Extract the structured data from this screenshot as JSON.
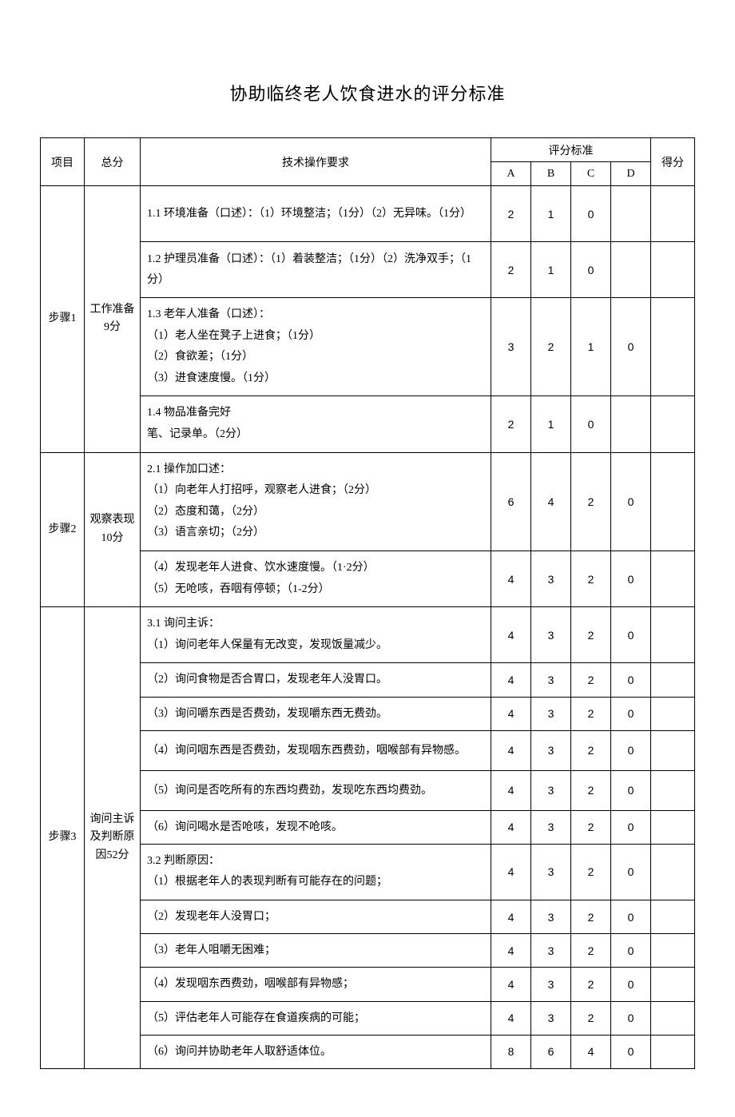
{
  "title": "协助临终老人饮食进水的评分标准",
  "headers": {
    "project": "项目",
    "total": "总分",
    "requirement": "技术操作要求",
    "standard": "评分标准",
    "A": "A",
    "B": "B",
    "C": "C",
    "D": "D",
    "score": "得分"
  },
  "sections": [
    {
      "proj": "步骤1",
      "total": "工作准备9分",
      "rows": [
        {
          "req": "1.1 环境准备（口述）：（1）环境整洁；（1分）（2）无异味。（1分）",
          "A": "2",
          "B": "1",
          "C": "0",
          "D": ""
        },
        {
          "req": "1.2 护理员准备（口述）：（1）着装整洁；（1分）（2）洗净双手；（1分）",
          "A": "2",
          "B": "1",
          "C": "0",
          "D": ""
        },
        {
          "req": "1.3 老年人准备（口述）：\n（1）老人坐在凳子上进食；（1分）\n（2）食欲差；（1分）\n（3）进食速度慢。（1分）",
          "A": "3",
          "B": "2",
          "C": "1",
          "D": "0"
        },
        {
          "req": "1.4 物品准备完好\n笔、记录单。（2分）",
          "A": "2",
          "B": "1",
          "C": "0",
          "D": ""
        }
      ]
    },
    {
      "proj": "步骤2",
      "total": "观察表现10分",
      "rows": [
        {
          "req": "2.1 操作加口述：\n（1）向老年人打招呼，观察老人进食；（2分）\n（2）态度和蔼，（2分）\n（3）语言亲切；（2分）",
          "A": "6",
          "B": "4",
          "C": "2",
          "D": "0"
        },
        {
          "req": "（4）发现老年人进食、饮水速度慢。（1·2分）\n（5）无呛咳，吞咽有停顿；（1-2分）",
          "A": "4",
          "B": "3",
          "C": "2",
          "D": "0"
        }
      ]
    },
    {
      "proj": "步骤3",
      "total": "询问主诉及判断原因52分",
      "rows": [
        {
          "req": "3.1 询问主诉：\n（1）询问老年人保量有无改变，发现饭量减少。",
          "A": "4",
          "B": "3",
          "C": "2",
          "D": "0"
        },
        {
          "req": "（2）询问食物是否合胃口，发现老年人没胃口。",
          "A": "4",
          "B": "3",
          "C": "2",
          "D": "0"
        },
        {
          "req": "（3）询问嚼东西是否费劲，发现嚼东西无费劲。",
          "A": "4",
          "B": "3",
          "C": "2",
          "D": "0"
        },
        {
          "req": "（4）询问咽东西是否费劲，发现咽东西费劲，咽喉部有异物感。",
          "A": "4",
          "B": "3",
          "C": "2",
          "D": "0"
        },
        {
          "req": "（5）询问是否吃所有的东西均费劲，发现吃东西均费劲。",
          "A": "4",
          "B": "3",
          "C": "2",
          "D": "0"
        },
        {
          "req": "（6）询问喝水是否呛咳，发现不呛咳。",
          "A": "4",
          "B": "3",
          "C": "2",
          "D": "0"
        },
        {
          "req": "3.2 判断原因：\n（1）根据老年人的表现判断有可能存在的问题；",
          "A": "4",
          "B": "3",
          "C": "2",
          "D": "0"
        },
        {
          "req": "（2）发现老年人没胃口；",
          "A": "4",
          "B": "3",
          "C": "2",
          "D": "0"
        },
        {
          "req": "（3）老年人咀嚼无困难；",
          "A": "4",
          "B": "3",
          "C": "2",
          "D": "0"
        },
        {
          "req": "（4）发现咽东西费劲，咽喉部有异物感；",
          "A": "4",
          "B": "3",
          "C": "2",
          "D": "0"
        },
        {
          "req": "（5）评估老年人可能存在食道疾病的可能；",
          "A": "4",
          "B": "3",
          "C": "2",
          "D": "0"
        },
        {
          "req": "（6）询问并协助老年人取舒适体位。",
          "A": "8",
          "B": "6",
          "C": "4",
          "D": "0"
        }
      ]
    }
  ],
  "style": {
    "background_color": "#ffffff",
    "text_color": "#000000",
    "border_color": "#000000",
    "title_fontsize": 22,
    "body_fontsize": 14,
    "font_family": "SimSun"
  }
}
